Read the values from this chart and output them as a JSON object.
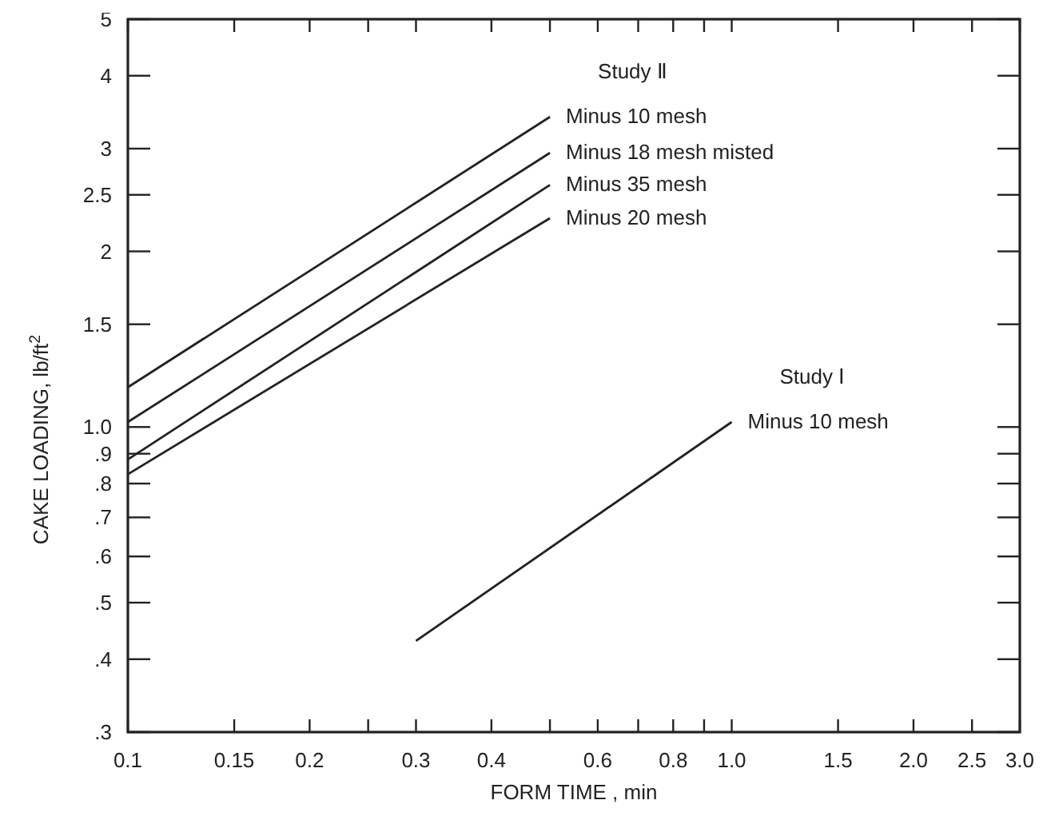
{
  "chart_data": {
    "type": "line",
    "xlabel": "FORM TIME , min",
    "ylabel": "CAKE LOADING, lb/ft$^{2}$",
    "log": "xy",
    "grid": false,
    "legend": false,
    "marker": "none",
    "line_style": "solid",
    "xlim": [
      0.1,
      3.0
    ],
    "ylim": [
      0.3,
      5
    ],
    "xticks": [
      0.1,
      0.15,
      0.2,
      {
        "value": 0.25,
        "label": null
      },
      0.3,
      0.4,
      {
        "value": 0.5,
        "label": null
      },
      0.6,
      {
        "value": 0.7,
        "label": null
      },
      0.8,
      {
        "value": 0.9,
        "label": null
      },
      {
        "value": 1.0,
        "label": "1.0"
      },
      1.5,
      {
        "value": 2.0,
        "label": "2.0"
      },
      2.5,
      {
        "value": 3.0,
        "label": "3.0"
      }
    ],
    "yticks": [
      {
        "value": 0.3,
        "label": ".3"
      },
      {
        "value": 0.4,
        "label": ".4"
      },
      {
        "value": 0.5,
        "label": ".5"
      },
      {
        "value": 0.6,
        "label": ".6"
      },
      {
        "value": 0.7,
        "label": ".7"
      },
      {
        "value": 0.8,
        "label": ".8"
      },
      {
        "value": 0.9,
        "label": ".9"
      },
      {
        "value": 1.0,
        "label": "1.0"
      },
      1.5,
      2,
      2.5,
      3,
      4,
      5
    ],
    "series": [
      {
        "name": "Minus 10 mesh",
        "color": "#222222",
        "x": [
          0.1,
          0.5
        ],
        "values": [
          1.17,
          3.4
        ]
      },
      {
        "name": "Minus 18 mesh misted",
        "color": "#222222",
        "x": [
          0.1,
          0.5
        ],
        "values": [
          1.02,
          2.95
        ]
      },
      {
        "name": "Minus 35 mesh",
        "color": "#222222",
        "x": [
          0.1,
          0.5
        ],
        "values": [
          0.88,
          2.6
        ]
      },
      {
        "name": "Minus 20 mesh",
        "color": "#222222",
        "x": [
          0.1,
          0.5
        ],
        "values": [
          0.83,
          2.28
        ]
      },
      {
        "name": "Minus 10 mesh",
        "color": "#222222",
        "x": [
          0.3,
          1.0
        ],
        "values": [
          0.43,
          1.02
        ]
      }
    ],
    "annotations": [
      "Study Ⅱ",
      "Study Ⅰ"
    ]
  }
}
